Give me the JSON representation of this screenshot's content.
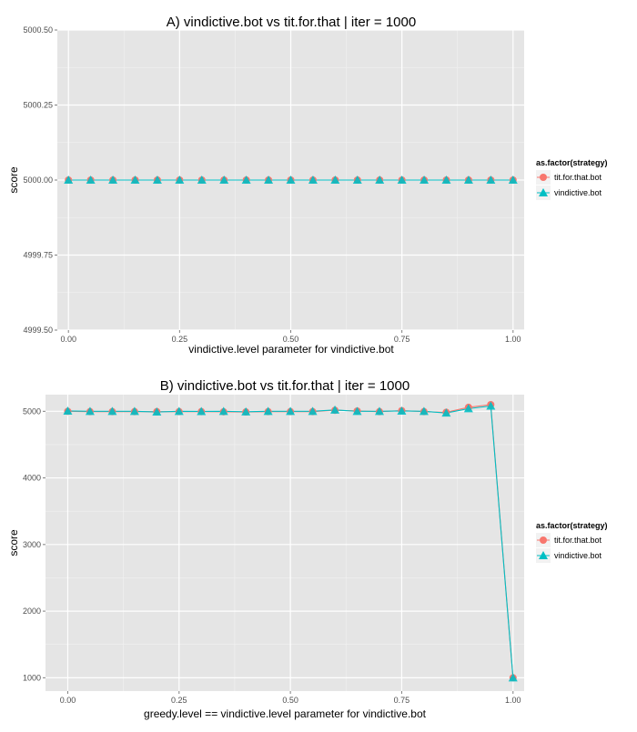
{
  "chart_data": [
    {
      "type": "line",
      "title": "A) vindictive.bot vs tit.for.that | iter = 1000",
      "xlabel": "vindictive.level parameter for vindictive.bot",
      "ylabel": "score",
      "xlim": [
        -0.025,
        1.025
      ],
      "ylim": [
        4999.5,
        5000.5
      ],
      "x_ticks": [
        0,
        0.25,
        0.5,
        0.75,
        1
      ],
      "x_tick_labels": [
        "0.00",
        "0.25",
        "0.50",
        "0.75",
        "1.00"
      ],
      "y_ticks": [
        4999.5,
        4999.75,
        5000,
        5000.25,
        5000.5
      ],
      "y_tick_labels": [
        "4999.50",
        "4999.75",
        "5000.00",
        "5000.25",
        "5000.50"
      ],
      "grid": true,
      "legend": {
        "title": "as.factor(strategy)",
        "position": "right"
      },
      "x": [
        0,
        0.05,
        0.1,
        0.15,
        0.2,
        0.25,
        0.3,
        0.35,
        0.4,
        0.45,
        0.5,
        0.55,
        0.6,
        0.65,
        0.7,
        0.75,
        0.8,
        0.85,
        0.9,
        0.95,
        1
      ],
      "series": [
        {
          "name": "tit.for.that.bot",
          "color": "#F8766D",
          "marker": "circle",
          "values": [
            5000,
            5000,
            5000,
            5000,
            5000,
            5000,
            5000,
            5000,
            5000,
            5000,
            5000,
            5000,
            5000,
            5000,
            5000,
            5000,
            5000,
            5000,
            5000,
            5000,
            5000
          ]
        },
        {
          "name": "vindictive.bot",
          "color": "#00BFC4",
          "marker": "triangle",
          "values": [
            5000,
            5000,
            5000,
            5000,
            5000,
            5000,
            5000,
            5000,
            5000,
            5000,
            5000,
            5000,
            5000,
            5000,
            5000,
            5000,
            5000,
            5000,
            5000,
            5000,
            5000
          ]
        }
      ]
    },
    {
      "type": "line",
      "title": "B) vindictive.bot vs tit.for.that | iter = 1000",
      "xlabel": "greedy.level == vindictive.level parameter for vindictive.bot",
      "ylabel": "score",
      "xlim": [
        -0.05,
        1.025
      ],
      "ylim": [
        800,
        5250
      ],
      "x_ticks": [
        0,
        0.25,
        0.5,
        0.75,
        1
      ],
      "x_tick_labels": [
        "0.00",
        "0.25",
        "0.50",
        "0.75",
        "1.00"
      ],
      "y_ticks": [
        1000,
        2000,
        3000,
        4000,
        5000
      ],
      "y_tick_labels": [
        "1000",
        "2000",
        "3000",
        "4000",
        "5000"
      ],
      "grid": true,
      "legend": {
        "title": "as.factor(strategy)",
        "position": "right"
      },
      "x": [
        0,
        0.05,
        0.1,
        0.15,
        0.2,
        0.25,
        0.3,
        0.35,
        0.4,
        0.45,
        0.5,
        0.55,
        0.6,
        0.65,
        0.7,
        0.75,
        0.8,
        0.85,
        0.9,
        0.95,
        1
      ],
      "series": [
        {
          "name": "tit.for.that.bot",
          "color": "#F8766D",
          "marker": "circle",
          "values": [
            5000,
            4995,
            4995,
            4995,
            4995,
            4995,
            4995,
            4993,
            4990,
            4995,
            4995,
            4995,
            5015,
            5005,
            4995,
            5010,
            4995,
            4985,
            5060,
            5100,
            1000
          ]
        },
        {
          "name": "vindictive.bot",
          "color": "#00BFC4",
          "marker": "triangle",
          "values": [
            5005,
            5000,
            5000,
            5000,
            4990,
            5000,
            4998,
            5000,
            4993,
            5000,
            5000,
            5000,
            5020,
            5000,
            5000,
            5005,
            5000,
            4975,
            5040,
            5080,
            1000
          ]
        }
      ]
    }
  ]
}
